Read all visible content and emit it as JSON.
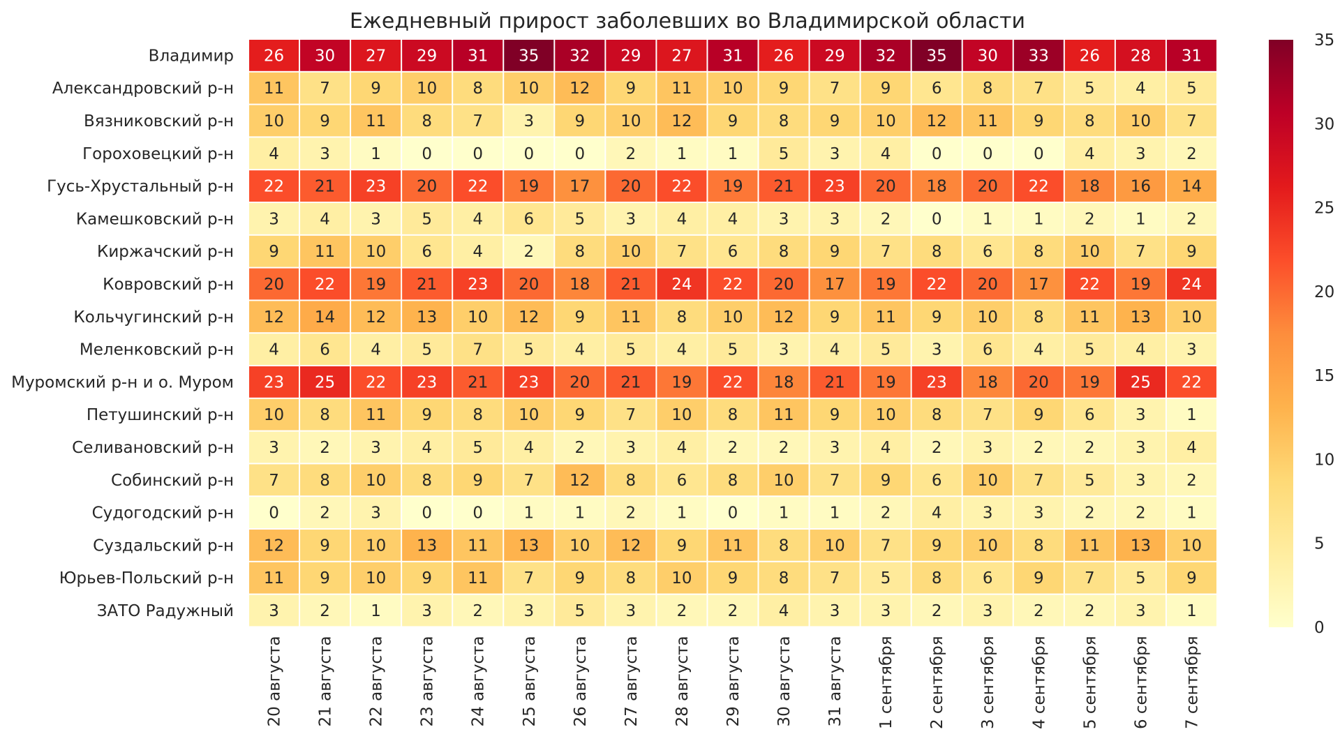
{
  "chart_data": {
    "type": "heatmap",
    "title": "Ежедневный прирост заболевших во Владимирской области",
    "xlabel": "",
    "ylabel": "",
    "rows": [
      "Владимир",
      "Александровский р-н",
      "Вязниковский р-н",
      "Гороховецкий р-н",
      "Гусь-Хрустальный р-н",
      "Камешковский р-н",
      "Киржачский р-н",
      "Ковровский р-н",
      "Кольчугинский р-н",
      "Меленковский р-н",
      "Муромский р-н и о. Муром",
      "Петушинский р-н",
      "Селивановский р-н",
      "Собинский р-н",
      "Судогодский р-н",
      "Суздальский р-н",
      "Юрьев-Польский р-н",
      "ЗАТО Радужный"
    ],
    "columns": [
      "20 августа",
      "21 августа",
      "22 августа",
      "23 августа",
      "24 августа",
      "25 августа",
      "26 августа",
      "27 августа",
      "28 августа",
      "29 августа",
      "30 августа",
      "31 августа",
      "1 сентября",
      "2 сентября",
      "3 сентября",
      "4 сентября",
      "5 сентября",
      "6 сентября",
      "7 сентября"
    ],
    "values": [
      [
        26,
        30,
        27,
        29,
        31,
        35,
        32,
        29,
        27,
        31,
        26,
        29,
        32,
        35,
        30,
        33,
        26,
        28,
        31
      ],
      [
        11,
        7,
        9,
        10,
        8,
        10,
        12,
        9,
        11,
        10,
        9,
        7,
        9,
        6,
        8,
        7,
        5,
        4,
        5
      ],
      [
        10,
        9,
        11,
        8,
        7,
        3,
        9,
        10,
        12,
        9,
        8,
        9,
        10,
        12,
        11,
        9,
        8,
        10,
        7
      ],
      [
        4,
        3,
        1,
        0,
        0,
        0,
        0,
        2,
        1,
        1,
        5,
        3,
        4,
        0,
        0,
        0,
        4,
        3,
        2
      ],
      [
        22,
        21,
        23,
        20,
        22,
        19,
        17,
        20,
        22,
        19,
        21,
        23,
        20,
        18,
        20,
        22,
        18,
        16,
        14
      ],
      [
        3,
        4,
        3,
        5,
        4,
        6,
        5,
        3,
        4,
        4,
        3,
        3,
        2,
        0,
        1,
        1,
        2,
        1,
        2
      ],
      [
        9,
        11,
        10,
        6,
        4,
        2,
        8,
        10,
        7,
        6,
        8,
        9,
        7,
        8,
        6,
        8,
        10,
        7,
        9
      ],
      [
        20,
        22,
        19,
        21,
        23,
        20,
        18,
        21,
        24,
        22,
        20,
        17,
        19,
        22,
        20,
        17,
        22,
        19,
        24
      ],
      [
        12,
        14,
        12,
        13,
        10,
        12,
        9,
        11,
        8,
        10,
        12,
        9,
        11,
        9,
        10,
        8,
        11,
        13,
        10
      ],
      [
        4,
        6,
        4,
        5,
        7,
        5,
        4,
        5,
        4,
        5,
        3,
        4,
        5,
        3,
        6,
        4,
        5,
        4,
        3
      ],
      [
        23,
        25,
        22,
        23,
        21,
        23,
        20,
        21,
        19,
        22,
        18,
        21,
        19,
        23,
        18,
        20,
        19,
        25,
        22
      ],
      [
        10,
        8,
        11,
        9,
        8,
        10,
        9,
        7,
        10,
        8,
        11,
        9,
        10,
        8,
        7,
        9,
        6,
        3,
        1
      ],
      [
        3,
        2,
        3,
        4,
        5,
        4,
        2,
        3,
        4,
        2,
        2,
        3,
        4,
        2,
        3,
        2,
        2,
        3,
        4
      ],
      [
        7,
        8,
        10,
        8,
        9,
        7,
        12,
        8,
        6,
        8,
        10,
        7,
        9,
        6,
        10,
        7,
        5,
        3,
        2
      ],
      [
        0,
        2,
        3,
        0,
        0,
        1,
        1,
        2,
        1,
        0,
        1,
        1,
        2,
        4,
        3,
        3,
        2,
        2,
        1
      ],
      [
        12,
        9,
        10,
        13,
        11,
        13,
        10,
        12,
        9,
        11,
        8,
        10,
        7,
        9,
        10,
        8,
        11,
        13,
        10
      ],
      [
        11,
        9,
        10,
        9,
        11,
        7,
        9,
        8,
        10,
        9,
        8,
        7,
        5,
        8,
        6,
        9,
        7,
        5,
        9
      ],
      [
        3,
        2,
        1,
        3,
        2,
        3,
        5,
        3,
        2,
        2,
        4,
        3,
        3,
        2,
        3,
        2,
        2,
        3,
        1
      ]
    ],
    "vmin": 0,
    "vmax": 35,
    "colormap": "YlOrRd",
    "colorbar_ticks": [
      0,
      5,
      10,
      15,
      20,
      25,
      30,
      35
    ],
    "colorbar_placement": "right",
    "cell_separator_color": "#ffffff"
  }
}
